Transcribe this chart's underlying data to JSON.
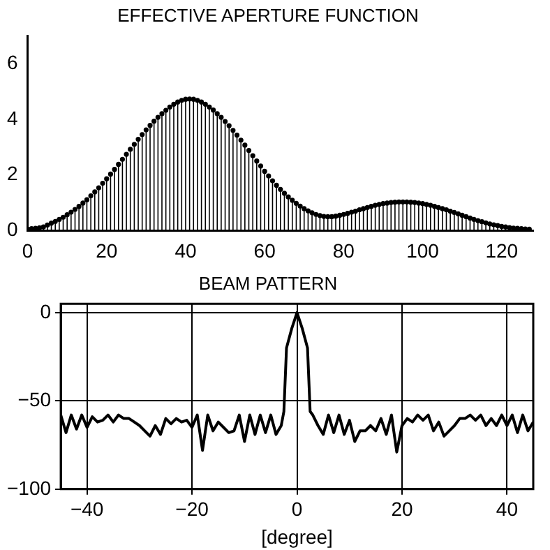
{
  "chart_data": [
    {
      "type": "lollipop",
      "title": "EFFECTIVE APERTURE FUNCTION",
      "marker": "circle",
      "grid": false,
      "xlim": [
        0,
        128
      ],
      "xticks": [
        0,
        20,
        40,
        60,
        80,
        100,
        120
      ],
      "ylim": [
        0,
        7
      ],
      "yticks": [
        0,
        2,
        4,
        6
      ],
      "x": [
        0,
        1,
        2,
        3,
        4,
        5,
        6,
        7,
        8,
        9,
        10,
        11,
        12,
        13,
        14,
        15,
        16,
        17,
        18,
        19,
        20,
        21,
        22,
        23,
        24,
        25,
        26,
        27,
        28,
        29,
        30,
        31,
        32,
        33,
        34,
        35,
        36,
        37,
        38,
        39,
        40,
        41,
        42,
        43,
        44,
        45,
        46,
        47,
        48,
        49,
        50,
        51,
        52,
        53,
        54,
        55,
        56,
        57,
        58,
        59,
        60,
        61,
        62,
        63,
        64,
        65,
        66,
        67,
        68,
        69,
        70,
        71,
        72,
        73,
        74,
        75,
        76,
        77,
        78,
        79,
        80,
        81,
        82,
        83,
        84,
        85,
        86,
        87,
        88,
        89,
        90,
        91,
        92,
        93,
        94,
        95,
        96,
        97,
        98,
        99,
        100,
        101,
        102,
        103,
        104,
        105,
        106,
        107,
        108,
        109,
        110,
        111,
        112,
        113,
        114,
        115,
        116,
        117,
        118,
        119,
        120,
        121,
        122,
        123,
        124,
        125,
        126,
        127
      ],
      "series": [
        {
          "color": "#000000",
          "values": [
            0.05,
            0.07,
            0.08,
            0.1,
            0.13,
            0.2,
            0.27,
            0.33,
            0.4,
            0.48,
            0.57,
            0.66,
            0.76,
            0.87,
            0.99,
            1.11,
            1.25,
            1.39,
            1.54,
            1.7,
            1.86,
            2.03,
            2.2,
            2.38,
            2.56,
            2.74,
            2.92,
            3.1,
            3.28,
            3.45,
            3.62,
            3.78,
            3.93,
            4.07,
            4.2,
            4.32,
            4.44,
            4.54,
            4.62,
            4.68,
            4.72,
            4.73,
            4.72,
            4.68,
            4.62,
            4.54,
            4.44,
            4.33,
            4.2,
            4.07,
            3.92,
            3.77,
            3.6,
            3.43,
            3.25,
            3.07,
            2.88,
            2.69,
            2.5,
            2.32,
            2.13,
            1.96,
            1.79,
            1.63,
            1.48,
            1.34,
            1.21,
            1.09,
            0.98,
            0.88,
            0.79,
            0.71,
            0.64,
            0.58,
            0.54,
            0.51,
            0.5,
            0.5,
            0.52,
            0.55,
            0.58,
            0.62,
            0.66,
            0.7,
            0.75,
            0.79,
            0.83,
            0.87,
            0.91,
            0.94,
            0.97,
            0.99,
            1.01,
            1.02,
            1.03,
            1.03,
            1.03,
            1.02,
            1.01,
            0.99,
            0.97,
            0.94,
            0.91,
            0.87,
            0.83,
            0.79,
            0.75,
            0.7,
            0.65,
            0.6,
            0.55,
            0.5,
            0.45,
            0.4,
            0.36,
            0.32,
            0.28,
            0.24,
            0.21,
            0.18,
            0.15,
            0.13,
            0.11,
            0.09,
            0.08,
            0.07,
            0.06,
            0.05
          ]
        }
      ]
    },
    {
      "type": "line",
      "title": "BEAM PATTERN",
      "xlabel": "[degree]",
      "grid": true,
      "line_style": "solid",
      "marker": "none",
      "xlim": [
        -45,
        45
      ],
      "xticks": [
        -40,
        -20,
        0,
        20,
        40
      ],
      "ylim": [
        -100,
        5
      ],
      "yticks": [
        -100,
        -50,
        0
      ],
      "x": [
        -45,
        -44,
        -43,
        -42,
        -41,
        -40,
        -39,
        -38,
        -37,
        -36,
        -35,
        -34,
        -33,
        -32,
        -31,
        -30,
        -29,
        -28,
        -27,
        -26,
        -25,
        -24,
        -23,
        -22,
        -21,
        -20,
        -19,
        -18,
        -17,
        -16,
        -15,
        -14,
        -13,
        -12,
        -11,
        -10,
        -9,
        -8,
        -7,
        -6,
        -5,
        -4,
        -3,
        -2.5,
        -2,
        -1,
        0,
        1,
        2,
        2.5,
        3,
        4,
        5,
        6,
        7,
        8,
        9,
        10,
        11,
        12,
        13,
        14,
        15,
        16,
        17,
        18,
        19,
        20,
        21,
        22,
        23,
        24,
        25,
        26,
        27,
        28,
        29,
        30,
        31,
        32,
        33,
        34,
        35,
        36,
        37,
        38,
        39,
        40,
        41,
        42,
        43,
        44,
        45
      ],
      "series": [
        {
          "color": "#000000",
          "values": [
            -58,
            -68,
            -58,
            -66,
            -58,
            -65,
            -59,
            -62,
            -61,
            -58,
            -62,
            -58,
            -60,
            -60,
            -62,
            -64,
            -67,
            -70,
            -64,
            -69,
            -60,
            -63,
            -60,
            -62,
            -61,
            -65,
            -58,
            -78,
            -58,
            -67,
            -62,
            -65,
            -68,
            -67,
            -58,
            -73,
            -58,
            -69,
            -58,
            -68,
            -58,
            -69,
            -64,
            -56,
            -20,
            -9,
            0,
            -9,
            -20,
            -56,
            -58,
            -64,
            -69,
            -58,
            -68,
            -58,
            -69,
            -61,
            -73,
            -67,
            -67,
            -64,
            -67,
            -60,
            -69,
            -58,
            -79,
            -64,
            -60,
            -62,
            -58,
            -61,
            -58,
            -67,
            -62,
            -70,
            -67,
            -64,
            -60,
            -60,
            -58,
            -61,
            -58,
            -64,
            -60,
            -64,
            -58,
            -64,
            -58,
            -68,
            -58,
            -67,
            -62
          ]
        }
      ]
    }
  ]
}
